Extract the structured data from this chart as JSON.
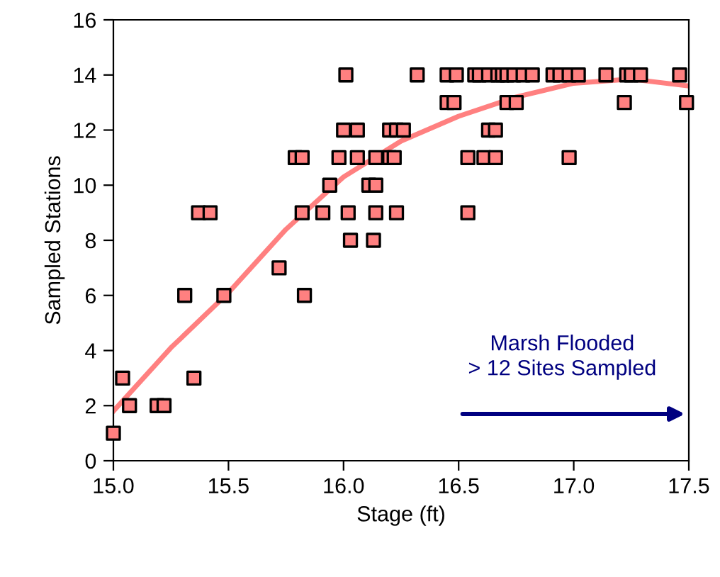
{
  "chart_data": {
    "type": "scatter",
    "xlabel": "Stage (ft)",
    "ylabel": "Sampled Stations",
    "xlim": [
      15.0,
      17.5
    ],
    "ylim": [
      0,
      16
    ],
    "xticks": [
      {
        "value": 15.0,
        "label": "15.0"
      },
      {
        "value": 15.5,
        "label": "15.5"
      },
      {
        "value": 16.0,
        "label": "16.0"
      },
      {
        "value": 16.5,
        "label": "16.5"
      },
      {
        "value": 17.0,
        "label": "17.0"
      },
      {
        "value": 17.5,
        "label": "17.5"
      }
    ],
    "yticks": [
      0,
      2,
      4,
      6,
      8,
      10,
      12,
      14,
      16
    ],
    "grid": false,
    "marker": "square",
    "series": [
      {
        "color": "#ff8080",
        "x": [
          15.0,
          15.04,
          15.07,
          15.19,
          15.22,
          15.31,
          15.35,
          15.37,
          15.42,
          15.48,
          15.72,
          15.79,
          15.82,
          15.82,
          15.83,
          15.91,
          15.94,
          15.98,
          16.0,
          16.01,
          16.02,
          16.03,
          16.06,
          16.06,
          16.11,
          16.14,
          16.13,
          16.14,
          16.14,
          16.2,
          16.23,
          16.26,
          16.2,
          16.22,
          16.23,
          16.32,
          16.45,
          16.49,
          16.57,
          16.59,
          16.63,
          16.67,
          16.69,
          16.71,
          16.74,
          16.78,
          16.82,
          16.91,
          16.94,
          16.98,
          17.02,
          17.14,
          17.23,
          17.25,
          17.29,
          17.46,
          16.45,
          16.48,
          16.71,
          16.75,
          17.22,
          17.49,
          16.63,
          16.66,
          16.54,
          16.61,
          16.66,
          16.98,
          16.54
        ],
        "values": [
          1,
          3,
          2,
          2,
          2,
          6,
          3,
          9,
          9,
          6,
          7,
          11,
          11,
          9,
          6,
          9,
          10,
          11,
          12,
          14,
          9,
          8,
          12,
          11,
          10,
          10,
          8,
          9,
          11,
          12,
          12,
          12,
          11,
          11,
          9,
          14,
          14,
          14,
          14,
          14,
          14,
          14,
          14,
          14,
          14,
          14,
          14,
          14,
          14,
          14,
          14,
          14,
          14,
          14,
          14,
          14,
          13,
          13,
          13,
          13,
          13,
          13,
          12,
          12,
          11,
          11,
          11,
          11,
          9
        ]
      },
      {
        "type": "line",
        "color": "#ff8080",
        "marker": "none",
        "line_style": "solid",
        "x": [
          15.0,
          15.25,
          15.5,
          15.75,
          16.0,
          16.25,
          16.5,
          16.75,
          17.0,
          17.25,
          17.5
        ],
        "values": [
          1.8,
          4.1,
          6.1,
          8.4,
          10.3,
          11.6,
          12.5,
          13.2,
          13.7,
          13.85,
          13.6
        ]
      }
    ],
    "annotations": [
      "Marsh Flooded\n> 12 Sites Sampled"
    ]
  }
}
